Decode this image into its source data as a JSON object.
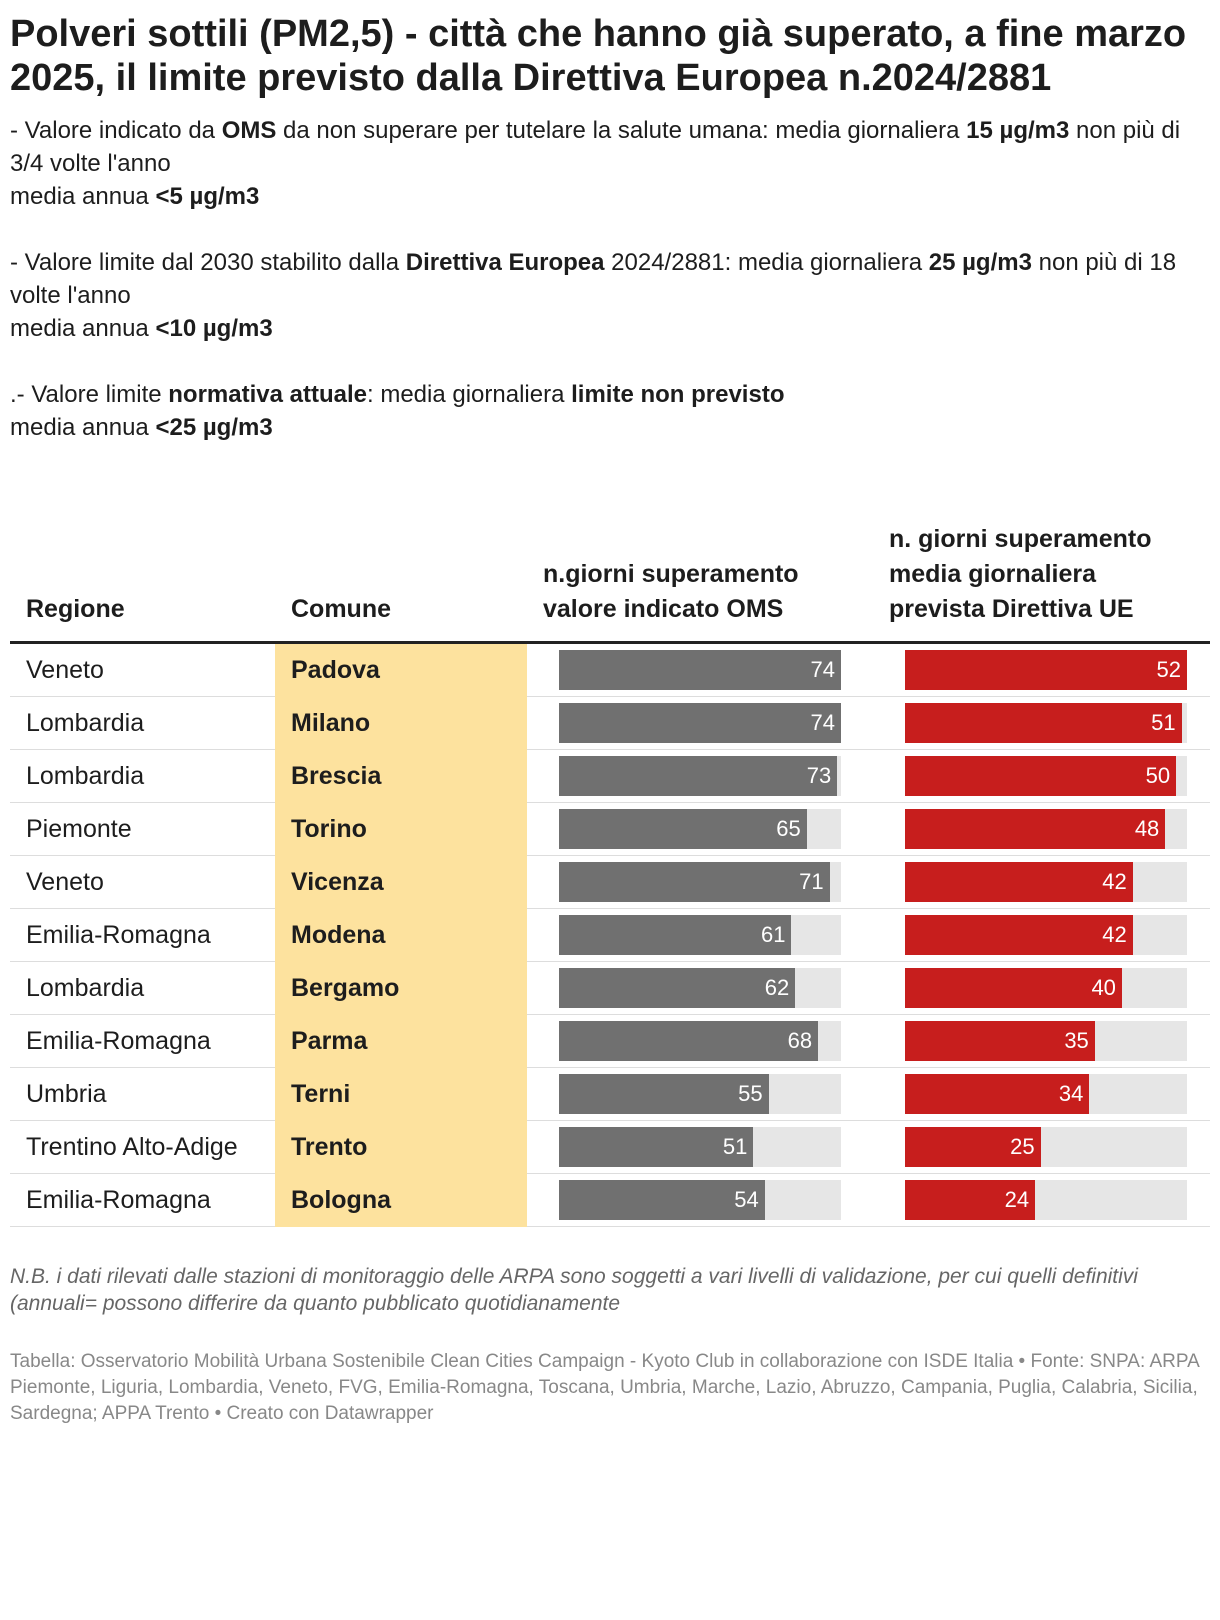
{
  "title": "Polveri sottili (PM2,5) - città che hanno già superato, a fine marzo 2025, il limite previsto dalla Direttiva Europea n.2024/2881",
  "intro": [
    [
      [
        {
          "text": "- Valore indicato da ",
          "bold": false
        },
        {
          "text": "OMS",
          "bold": true
        },
        {
          "text": " da non superare per tutelare la salute umana: media giornaliera ",
          "bold": false
        },
        {
          "text": "15 µg/m3",
          "bold": true
        },
        {
          "text": " non più di 3/4 volte l'anno",
          "bold": false
        }
      ],
      [
        {
          "text": "media annua ",
          "bold": false
        },
        {
          "text": "<5 µg/m3",
          "bold": true
        }
      ]
    ],
    [
      [
        {
          "text": "- Valore limite dal 2030 stabilito dalla ",
          "bold": false
        },
        {
          "text": "Direttiva Europea",
          "bold": true
        },
        {
          "text": " 2024/2881: media giornaliera ",
          "bold": false
        },
        {
          "text": "25 µg/m3",
          "bold": true
        },
        {
          "text": " non più di 18 volte l'anno",
          "bold": false
        }
      ],
      [
        {
          "text": "media annua ",
          "bold": false
        },
        {
          "text": "<10 µg/m3",
          "bold": true
        }
      ]
    ],
    [
      [
        {
          "text": ".- Valore limite ",
          "bold": false
        },
        {
          "text": "normativa attuale",
          "bold": true
        },
        {
          "text": ": media giornaliera ",
          "bold": false
        },
        {
          "text": "limite non previsto",
          "bold": true
        }
      ],
      [
        {
          "text": "media annua ",
          "bold": false
        },
        {
          "text": "<25 µg/m3",
          "bold": true
        }
      ]
    ]
  ],
  "table": {
    "columns": [
      "Regione",
      "Comune",
      "n.giorni superamento valore indicato OMS",
      "n. giorni superamento media giornaliera prevista Direttiva UE"
    ],
    "bar_colors": [
      "#707070",
      "#c71e1d"
    ],
    "rows": [
      [
        "Veneto",
        "Padova",
        74,
        52
      ],
      [
        "Lombardia",
        "Milano",
        74,
        51
      ],
      [
        "Lombardia",
        "Brescia",
        73,
        50
      ],
      [
        "Piemonte",
        "Torino",
        65,
        48
      ],
      [
        "Veneto",
        "Vicenza",
        71,
        42
      ],
      [
        "Emilia-Romagna",
        "Modena",
        61,
        42
      ],
      [
        "Lombardia",
        "Bergamo",
        62,
        40
      ],
      [
        "Emilia-Romagna",
        "Parma",
        68,
        35
      ],
      [
        "Umbria",
        "Terni",
        55,
        34
      ],
      [
        "Trentino Alto-Adige",
        "Trento",
        51,
        25
      ],
      [
        "Emilia-Romagna",
        "Bologna",
        54,
        24
      ]
    ]
  },
  "notes": "N.B. i dati rilevati dalle stazioni di monitoraggio delle ARPA sono soggetti a vari livelli di validazione, per cui quelli definitivi (annuali= possono differire da quanto pubblicato quotidianamente",
  "footer": "Tabella: Osservatorio Mobilità Urbana Sostenibile Clean Cities Campaign - Kyoto Club in collaborazione con ISDE Italia • Fonte: SNPA: ARPA Piemonte, Liguria, Lombardia, Veneto, FVG, Emilia-Romagna, Toscana, Umbria, Marche, Lazio, Abruzzo, Campania, Puglia, Calabria, Sicilia, Sardegna; APPA Trento • Creato con Datawrapper"
}
